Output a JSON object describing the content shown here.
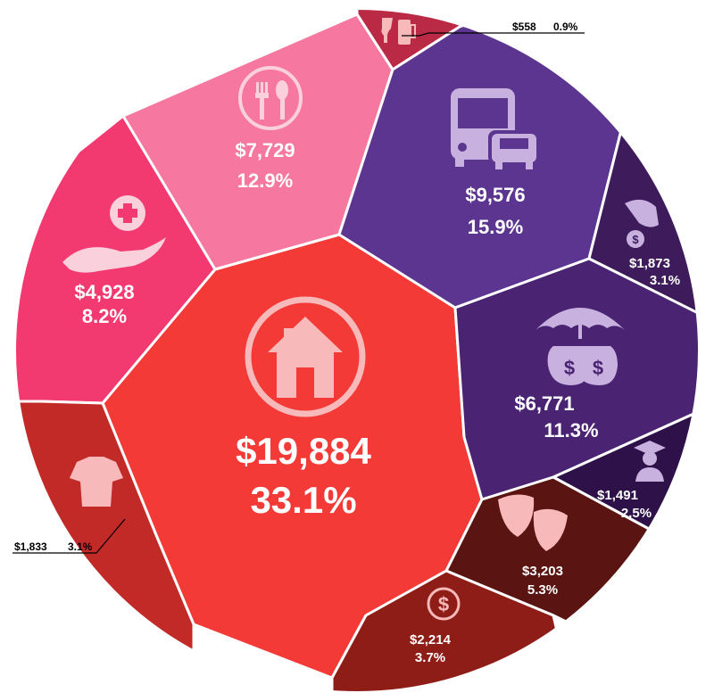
{
  "chart_data": {
    "type": "pie",
    "categories": [
      {
        "key": "housing",
        "icon": "house-icon",
        "value": 19884,
        "value_label": "$19,884",
        "percent_label": "33.1%",
        "color": "#f33a37"
      },
      {
        "key": "healthcare",
        "icon": "healthcare-hand-icon",
        "value": 4928,
        "value_label": "$4,928",
        "percent_label": "8.2%",
        "color": "#f23a70"
      },
      {
        "key": "food",
        "icon": "fork-spoon-icon",
        "value": 7729,
        "value_label": "$7,729",
        "percent_label": "12.9%",
        "color": "#f6779f"
      },
      {
        "key": "alcohol",
        "icon": "wine-beer-icon",
        "value": 558,
        "value_label": "$558",
        "percent_label": "0.9%",
        "color": "#bb2a45"
      },
      {
        "key": "transportation",
        "icon": "bus-car-icon",
        "value": 9576,
        "value_label": "$9,576",
        "percent_label": "15.9%",
        "color": "#5c3590"
      },
      {
        "key": "cash-contributions",
        "icon": "hand-coin-icon",
        "value": 1873,
        "value_label": "$1,873",
        "percent_label": "3.1%",
        "color": "#3e1c5c"
      },
      {
        "key": "insurance-pensions",
        "icon": "umbrella-moneybags-icon",
        "value": 6771,
        "value_label": "$6,771",
        "percent_label": "11.3%",
        "color": "#4a2473"
      },
      {
        "key": "education",
        "icon": "graduate-icon",
        "value": 1491,
        "value_label": "$1,491",
        "percent_label": "2.5%",
        "color": "#2d1148"
      },
      {
        "key": "entertainment",
        "icon": "theater-masks-icon",
        "value": 3203,
        "value_label": "$3,203",
        "percent_label": "5.3%",
        "color": "#5a1411"
      },
      {
        "key": "other",
        "icon": "dollar-coin-icon",
        "value": 2214,
        "value_label": "$2,214",
        "percent_label": "3.7%",
        "color": "#8f1d17"
      },
      {
        "key": "apparel",
        "icon": "tshirt-icon",
        "value": 1833,
        "value_label": "$1,833",
        "percent_label": "3.1%",
        "color": "#c22a28"
      }
    ]
  },
  "colors": {
    "divider": "#ffffff",
    "icon_light": "#f7b9b9",
    "icon_pink": "#fbd0dd",
    "icon_lavender": "#c9b1df",
    "background": "#ffffff"
  }
}
